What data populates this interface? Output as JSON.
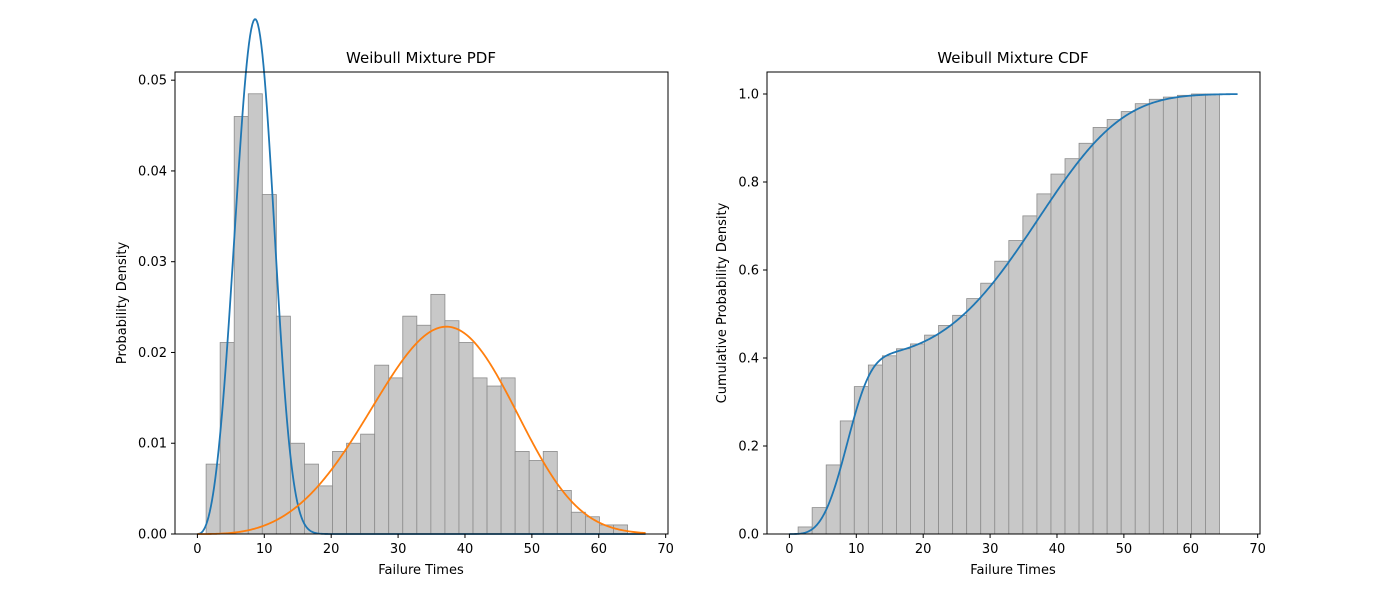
{
  "chart_data": [
    {
      "type": "bar",
      "title": "Weibull Mixture PDF",
      "xlabel": "Failure Times",
      "ylabel": "Probability Density",
      "xlim": [
        -3.35,
        70.35
      ],
      "ylim": [
        0,
        0.0509
      ],
      "xticks": [
        0,
        10,
        20,
        30,
        40,
        50,
        60,
        70
      ],
      "yticks": [
        0.0,
        0.01,
        0.02,
        0.03,
        0.04,
        0.05
      ],
      "ytick_labels": [
        "0.00",
        "0.01",
        "0.02",
        "0.03",
        "0.04",
        "0.05"
      ],
      "grid": false,
      "histogram": {
        "bin_start": 1.3,
        "bin_width": 2.1,
        "values": [
          0.0077,
          0.0211,
          0.046,
          0.0485,
          0.0374,
          0.024,
          0.01,
          0.0077,
          0.0053,
          0.0091,
          0.01,
          0.011,
          0.0186,
          0.0172,
          0.024,
          0.023,
          0.0264,
          0.0235,
          0.0211,
          0.0172,
          0.0163,
          0.0172,
          0.0091,
          0.0081,
          0.0091,
          0.0048,
          0.0024,
          0.0019,
          0.001,
          0.001
        ],
        "color": "#c8c8c8",
        "edge_color": "#8c8c8c"
      },
      "curves": [
        {
          "kind": "weibull",
          "weight": 0.4,
          "scale": 9.5,
          "shape": 3.5,
          "color": "#1f77b4",
          "x_range": [
            0,
            67
          ]
        },
        {
          "kind": "weibull",
          "weight": 0.6,
          "scale": 40,
          "shape": 4.0,
          "color": "#ff7f0e",
          "x_range": [
            0,
            67
          ]
        }
      ]
    },
    {
      "type": "bar",
      "title": "Weibull Mixture CDF",
      "xlabel": "Failure Times",
      "ylabel": "Cumulative Probability Density",
      "xlim": [
        -3.35,
        70.35
      ],
      "ylim": [
        0,
        1.05
      ],
      "xticks": [
        0,
        10,
        20,
        30,
        40,
        50,
        60,
        70
      ],
      "yticks": [
        0.0,
        0.2,
        0.4,
        0.6,
        0.8,
        1.0
      ],
      "ytick_labels": [
        "0.0",
        "0.2",
        "0.4",
        "0.6",
        "0.8",
        "1.0"
      ],
      "grid": false,
      "histogram": {
        "bin_start": 1.3,
        "bin_width": 2.1,
        "values": [
          0.016,
          0.06,
          0.157,
          0.257,
          0.335,
          0.384,
          0.405,
          0.421,
          0.432,
          0.452,
          0.474,
          0.497,
          0.535,
          0.57,
          0.62,
          0.667,
          0.723,
          0.773,
          0.818,
          0.853,
          0.888,
          0.924,
          0.942,
          0.96,
          0.978,
          0.988,
          0.993,
          0.997,
          1.0,
          1.0
        ],
        "color": "#c8c8c8",
        "edge_color": "#8c8c8c"
      },
      "curves": [
        {
          "kind": "weibull_mixture_cdf",
          "components": [
            {
              "weight": 0.4,
              "scale": 9.5,
              "shape": 3.5
            },
            {
              "weight": 0.6,
              "scale": 40,
              "shape": 4.0
            }
          ],
          "color": "#1f77b4",
          "x_range": [
            0,
            67
          ]
        }
      ]
    }
  ]
}
